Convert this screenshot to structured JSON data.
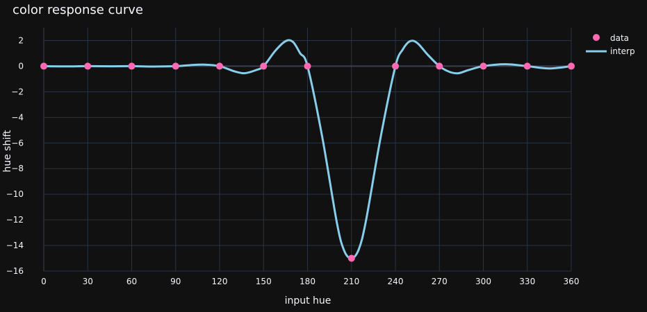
{
  "chart_data": {
    "type": "line",
    "title": "color response curve",
    "xlabel": "input hue",
    "ylabel": "hue shift",
    "xlim": [
      0,
      360
    ],
    "ylim": [
      -16,
      3
    ],
    "xticks": [
      0,
      30,
      60,
      90,
      120,
      150,
      180,
      210,
      240,
      270,
      300,
      330,
      360
    ],
    "yticks": [
      -16,
      -14,
      -12,
      -10,
      -8,
      -6,
      -4,
      -2,
      0,
      2
    ],
    "grid": true,
    "legend_position": "top-right",
    "series": [
      {
        "name": "data",
        "mode": "markers",
        "color": "#ff69b4",
        "x": [
          0,
          30,
          60,
          90,
          120,
          150,
          180,
          210,
          240,
          270,
          300,
          330,
          360
        ],
        "y": [
          0,
          0,
          0,
          0,
          0,
          0,
          0,
          -15,
          0,
          0,
          0,
          0,
          0
        ]
      },
      {
        "name": "interp",
        "mode": "line",
        "color": "#87ceeb",
        "x": [
          0,
          15,
          30,
          45,
          60,
          75,
          90,
          100,
          110,
          120,
          130,
          137,
          145,
          150,
          158,
          165,
          170,
          175,
          180,
          190,
          200,
          205,
          210,
          215,
          220,
          230,
          240,
          245,
          250,
          255,
          262,
          270,
          277,
          283,
          290,
          300,
          315,
          330,
          345,
          360
        ],
        "y": [
          0,
          -0.02,
          0,
          -0.01,
          0,
          -0.03,
          0,
          0.08,
          0.12,
          0,
          -0.4,
          -0.55,
          -0.3,
          0,
          1.2,
          1.95,
          1.9,
          1.0,
          0,
          -5.5,
          -12.2,
          -14.4,
          -15,
          -14.3,
          -12,
          -5.5,
          0,
          1.3,
          1.95,
          1.8,
          0.9,
          0,
          -0.45,
          -0.55,
          -0.3,
          0,
          0.15,
          0,
          -0.18,
          0
        ]
      }
    ]
  }
}
